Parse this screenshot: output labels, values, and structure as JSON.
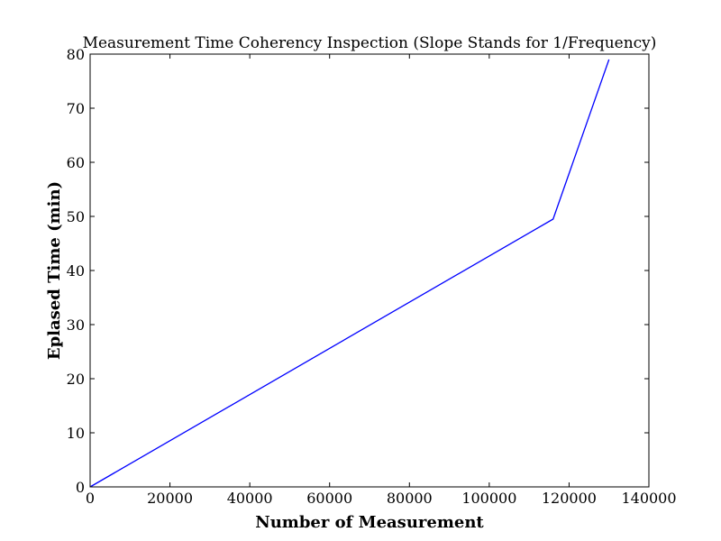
{
  "chart_data": {
    "type": "line",
    "title": "Measurement Time Coherency Inspection (Slope Stands for 1/Frequency)",
    "xlabel": "Number of Measurement",
    "ylabel": "Eplased Time (min)",
    "xlim": [
      0,
      140000
    ],
    "ylim": [
      0,
      80
    ],
    "x_ticks": [
      "0",
      "20000",
      "40000",
      "60000",
      "80000",
      "100000",
      "120000",
      "140000"
    ],
    "y_ticks": [
      "0",
      "10",
      "20",
      "30",
      "40",
      "50",
      "60",
      "70",
      "80"
    ],
    "grid": false,
    "series": [
      {
        "color": "#0000ff",
        "x": [
          0,
          116000,
          130000
        ],
        "y": [
          0,
          49.5,
          79
        ]
      }
    ]
  }
}
